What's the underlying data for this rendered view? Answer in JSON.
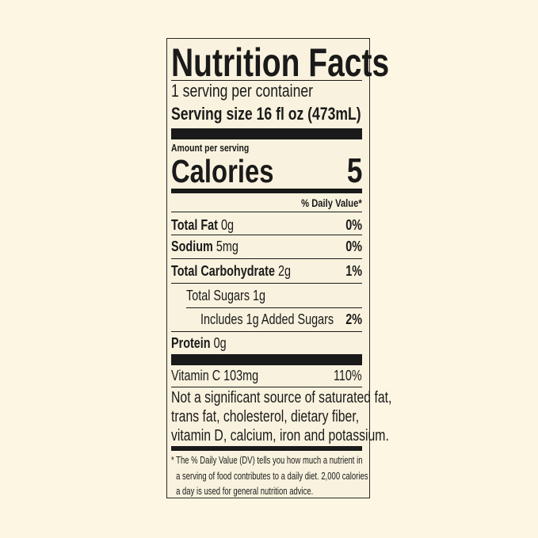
{
  "title": "Nutrition Facts",
  "servings_per_container": "1 serving per container",
  "serving_size": {
    "label": "Serving size",
    "value": "16 fl oz (473mL)"
  },
  "amount_per_serving": "Amount per serving",
  "calories": {
    "label": "Calories",
    "value": "5"
  },
  "daily_value_header": "% Daily Value*",
  "nutrients": [
    {
      "name": "Total Fat",
      "amount": "0g",
      "dv": "0%"
    },
    {
      "name": "Sodium",
      "amount": "5mg",
      "dv": "0%"
    },
    {
      "name": "Total Carbohydrate",
      "amount": "2g",
      "dv": "1%"
    },
    {
      "name": "Total Sugars 1g",
      "amount": "",
      "dv": ""
    },
    {
      "name": "Includes 1g Added Sugars",
      "amount": "",
      "dv": "2%"
    },
    {
      "name": "Protein",
      "amount": "0g",
      "dv": ""
    }
  ],
  "vitamins": [
    {
      "name": "Vitamin C 103mg",
      "dv": "110%"
    }
  ],
  "not_significant": [
    "Not a significant source of saturated fat,",
    "trans fat, cholesterol, dietary fiber,",
    "vitamin D, calcium, iron and potassium."
  ],
  "footnote": [
    "* The % Daily Value (DV) tells you how much a nutrient in",
    "a serving of food contributes to a daily diet. 2,000 calories",
    "a day is used for general nutrition advice."
  ]
}
